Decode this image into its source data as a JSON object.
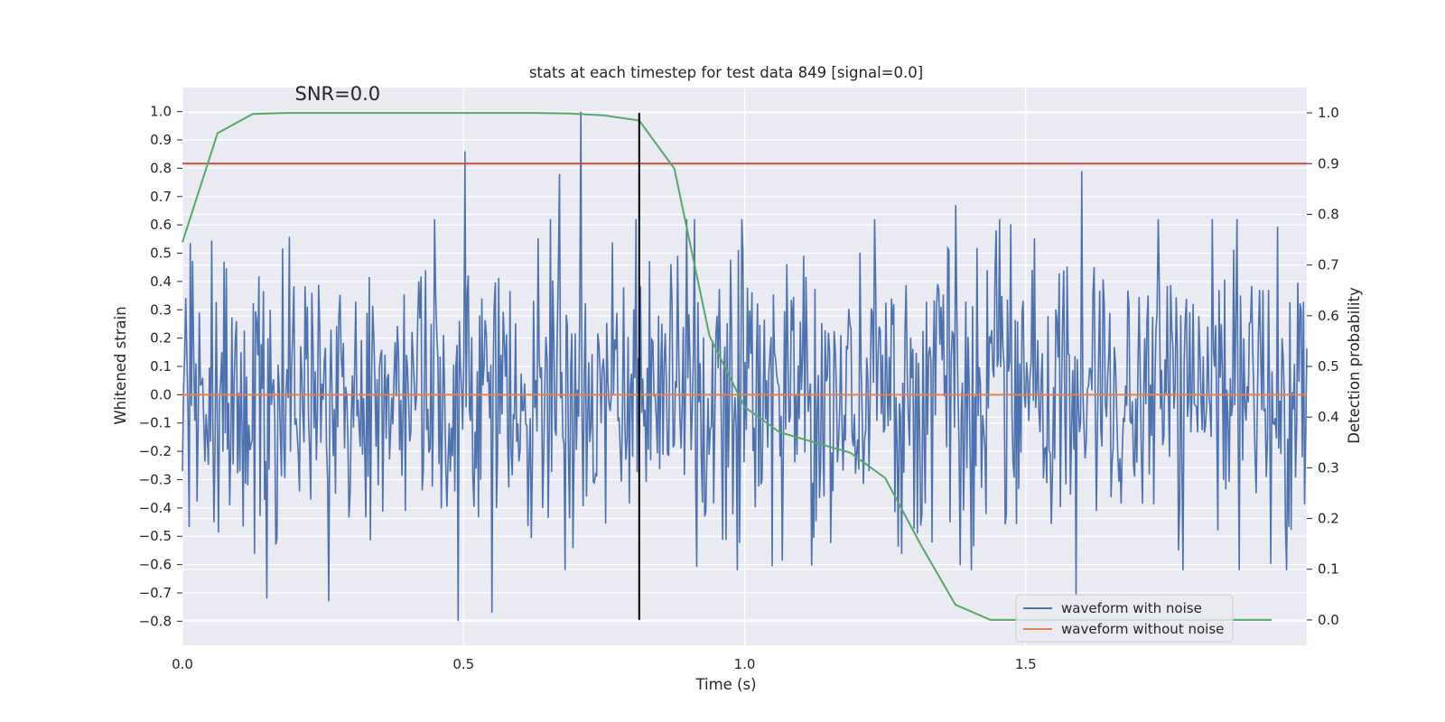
{
  "chart_data": {
    "type": "line",
    "title": "stats at each timestep for test data 849 [signal=0.0]",
    "xlabel": "Time (s)",
    "ylabel": "Whitened strain",
    "y2label": "Detection probability",
    "xlim": [
      0.0,
      2.0
    ],
    "ylim": [
      -0.885,
      1.085
    ],
    "y2lim": [
      -0.05,
      1.05
    ],
    "xticks": [
      0.0,
      0.5,
      1.0,
      1.5
    ],
    "xtick_labels": [
      "0.0",
      "0.5",
      "1.0",
      "1.5"
    ],
    "yticks": [
      1.0,
      0.9,
      0.8,
      0.7,
      0.6,
      0.5,
      0.4,
      0.3,
      0.2,
      0.1,
      0.0,
      -0.1,
      -0.2,
      -0.3,
      -0.4,
      -0.5,
      -0.6,
      -0.7,
      -0.8
    ],
    "ytick_labels": [
      "1.0",
      "0.9",
      "0.8",
      "0.7",
      "0.6",
      "0.5",
      "0.4",
      "0.3",
      "0.2",
      "0.1",
      "0.0",
      "−0.1",
      "−0.2",
      "−0.3",
      "−0.4",
      "−0.5",
      "−0.6",
      "−0.7",
      "−0.8"
    ],
    "y2ticks": [
      1.0,
      0.9,
      0.8,
      0.7,
      0.6,
      0.5,
      0.4,
      0.3,
      0.2,
      0.1,
      0.0
    ],
    "y2tick_labels": [
      "1.0",
      "0.9",
      "0.8",
      "0.7",
      "0.6",
      "0.5",
      "0.4",
      "0.3",
      "0.2",
      "0.1",
      "0.0"
    ],
    "annotation": "SNR=0.0",
    "annotation_x": 0.2,
    "annotation_y": 1.04,
    "series": [
      {
        "name": "waveform with noise",
        "axis": "left",
        "color": "#4c72b0",
        "kind": "noise",
        "x_start": 0.0,
        "x_end": 2.0,
        "n_points": 1000,
        "amplitude_std": 0.25,
        "peaks": [
          [
            0.708,
            1.0
          ],
          [
            0.503,
            0.86
          ],
          [
            0.49,
            -0.8
          ],
          [
            0.55,
            -0.77
          ],
          [
            0.26,
            -0.73
          ],
          [
            0.15,
            -0.72
          ],
          [
            1.59,
            -0.71
          ],
          [
            1.6,
            0.79
          ],
          [
            1.375,
            0.67
          ],
          [
            0.67,
            0.78
          ]
        ]
      },
      {
        "name": "waveform without noise",
        "axis": "left",
        "color": "#dd8452",
        "x": [
          0.0,
          2.0
        ],
        "y": [
          0.0,
          0.0
        ]
      },
      {
        "name": "detection probability",
        "axis": "right",
        "color": "#55a868",
        "x": [
          0.0,
          0.0625,
          0.125,
          0.1875,
          0.25,
          0.3125,
          0.375,
          0.4375,
          0.5,
          0.5625,
          0.625,
          0.6875,
          0.75,
          0.8125,
          0.875,
          0.9375,
          1.0,
          1.0625,
          1.125,
          1.1875,
          1.25,
          1.3125,
          1.375,
          1.4375,
          1.5,
          1.5625,
          1.625,
          1.6875,
          1.75,
          1.8125,
          1.9375
        ],
        "y": [
          0.745,
          0.96,
          0.998,
          1.0,
          1.0,
          1.0,
          1.0,
          1.0,
          1.0,
          1.0,
          1.0,
          0.999,
          0.995,
          0.985,
          0.89,
          0.56,
          0.42,
          0.37,
          0.35,
          0.33,
          0.28,
          0.15,
          0.03,
          0.0,
          0.0,
          0.0,
          0.0,
          0.0,
          0.0,
          0.0,
          0.0
        ]
      },
      {
        "name": "threshold",
        "axis": "right",
        "color": "#c44e52",
        "x": [
          0.0,
          2.0
        ],
        "y": [
          0.9,
          0.9
        ]
      },
      {
        "name": "current timestep",
        "axis": "right",
        "color": "#000000",
        "kind": "vline",
        "x": 0.8125,
        "y_range": [
          0.0,
          1.0
        ]
      }
    ],
    "legend": {
      "placement": "lower-right",
      "entries": [
        {
          "label": "waveform with noise",
          "color": "#4c72b0"
        },
        {
          "label": "waveform without noise",
          "color": "#dd8452"
        }
      ]
    },
    "background": "#eaeaf2",
    "grid": true
  }
}
